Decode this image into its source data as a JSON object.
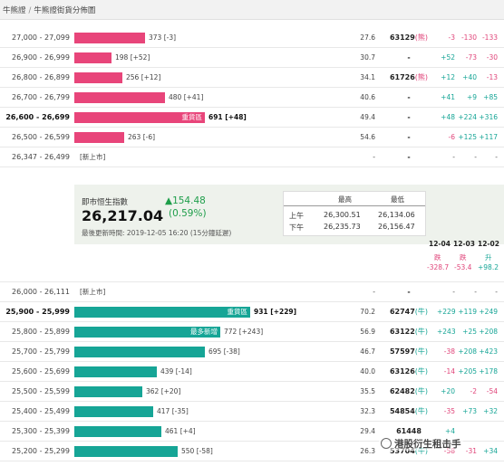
{
  "breadcrumb": {
    "root": "牛熊證",
    "current": "牛熊證街貨分佈圖"
  },
  "colors": {
    "bear": "#e8457a",
    "bull": "#16a596",
    "rise": "#1e9e4a"
  },
  "upper_rows": [
    {
      "range": "27,000 - 27,099",
      "qty": "373 [-3]",
      "bar": 0.25,
      "tag": "",
      "pct": "27.6",
      "index": "63129",
      "mark": "(熊)",
      "d1": "-3",
      "d2": "-130",
      "d3": "-133"
    },
    {
      "range": "26,900 - 26,999",
      "qty": "198 [+52]",
      "bar": 0.133,
      "tag": "",
      "pct": "30.7",
      "index": "-",
      "mark": "",
      "d1": "+52",
      "d2": "-73",
      "d3": "-30"
    },
    {
      "range": "26,800 - 26,899",
      "qty": "256 [+12]",
      "bar": 0.172,
      "tag": "",
      "pct": "34.1",
      "index": "61726",
      "mark": "(熊)",
      "d1": "+12",
      "d2": "+40",
      "d3": "-13"
    },
    {
      "range": "26,700 - 26,799",
      "qty": "480 [+41]",
      "bar": 0.322,
      "tag": "",
      "pct": "40.6",
      "index": "-",
      "mark": "",
      "d1": "+41",
      "d2": "+9",
      "d3": "+85"
    },
    {
      "range": "26,600 - 26,699",
      "qty": "691 [+48]",
      "bar": 0.464,
      "tag": "重貨區",
      "pct": "49.4",
      "index": "-",
      "mark": "",
      "d1": "+48",
      "d2": "+224",
      "d3": "+316",
      "bold": true
    },
    {
      "range": "26,500 - 26,599",
      "qty": "263 [-6]",
      "bar": 0.177,
      "tag": "",
      "pct": "54.6",
      "index": "-",
      "mark": "",
      "d1": "-6",
      "d2": "+125",
      "d3": "+117"
    },
    {
      "range": "26,347 - 26,499",
      "newmkt": "[新上市]",
      "pct": "-",
      "index": "-",
      "d1": "-",
      "d2": "-",
      "d3": "-"
    }
  ],
  "summary": {
    "title": "即市恒生指數",
    "value": "26,217.04",
    "change": "▲154.48",
    "change_pct": "(0.59%)",
    "updated": "最後更新時間: 2019-12-05 16:20 (15分鐘延遲)",
    "hl_headers": {
      "high": "最高",
      "low": "最低"
    },
    "hl_rows": [
      {
        "session": "上午",
        "high": "26,300.51",
        "low": "26,134.06"
      },
      {
        "session": "下午",
        "high": "26,235.73",
        "low": "26,156.47"
      }
    ],
    "days": [
      {
        "date": "12-04",
        "dir": "跌",
        "val": "-328.7"
      },
      {
        "date": "12-03",
        "dir": "跌",
        "val": "-53.4"
      },
      {
        "date": "12-02",
        "dir": "升",
        "val": "+98.2"
      }
    ]
  },
  "lower_rows": [
    {
      "range": "26,000 - 26,111",
      "newmkt": "[新上市]",
      "pct": "-",
      "index": "-",
      "d1": "-",
      "d2": "-",
      "d3": "-"
    },
    {
      "range": "25,900 - 25,999",
      "qty": "931 [+229]",
      "bar": 0.625,
      "tag": "重貨區",
      "pct": "70.2",
      "index": "62747",
      "mark": "(牛)",
      "d1": "+229",
      "d2": "+119",
      "d3": "+249",
      "bold": true
    },
    {
      "range": "25,800 - 25,899",
      "qty": "772 [+243]",
      "bar": 0.518,
      "tag": "最多新增",
      "pct": "56.9",
      "index": "63122",
      "mark": "(牛)",
      "d1": "+243",
      "d2": "+25",
      "d3": "+208"
    },
    {
      "range": "25,700 - 25,799",
      "qty": "695 [-38]",
      "bar": 0.466,
      "tag": "",
      "pct": "46.7",
      "index": "57597",
      "mark": "(牛)",
      "d1": "-38",
      "d2": "+208",
      "d3": "+423"
    },
    {
      "range": "25,600 - 25,699",
      "qty": "439 [-14]",
      "bar": 0.295,
      "tag": "",
      "pct": "40.0",
      "index": "63126",
      "mark": "(牛)",
      "d1": "-14",
      "d2": "+205",
      "d3": "+178"
    },
    {
      "range": "25,500 - 25,599",
      "qty": "362 [+20]",
      "bar": 0.243,
      "tag": "",
      "pct": "35.5",
      "index": "62482",
      "mark": "(牛)",
      "d1": "+20",
      "d2": "-2",
      "d3": "-54"
    },
    {
      "range": "25,400 - 25,499",
      "qty": "417 [-35]",
      "bar": 0.28,
      "tag": "",
      "pct": "32.3",
      "index": "54854",
      "mark": "(牛)",
      "d1": "-35",
      "d2": "+73",
      "d3": "+32"
    },
    {
      "range": "25,300 - 25,399",
      "qty": "461 [+4]",
      "bar": 0.309,
      "tag": "",
      "pct": "29.4",
      "index": "61448",
      "mark": "",
      "d1": "+4",
      "d2": "",
      "d3": ""
    },
    {
      "range": "25,200 - 25,299",
      "qty": "550 [-58]",
      "bar": 0.369,
      "tag": "",
      "pct": "26.3",
      "index": "53704",
      "mark": "(牛)",
      "d1": "-58",
      "d2": "-31",
      "d3": "+34"
    }
  ],
  "watermark": "港股衍生租击手"
}
